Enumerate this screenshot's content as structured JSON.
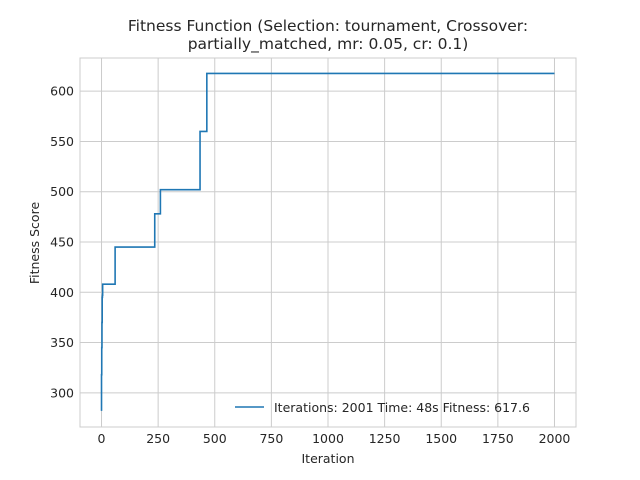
{
  "chart_data": {
    "type": "line",
    "title_line1": "Fitness Function (Selection: tournament, Crossover:",
    "title_line2": "partially_matched, mr: 0.05, cr: 0.1)",
    "xlabel": "Iteration",
    "ylabel": "Fitness Score",
    "xlim": [
      -95,
      2095
    ],
    "ylim": [
      266,
      633
    ],
    "xticks": [
      0,
      250,
      500,
      750,
      1000,
      1250,
      1500,
      1750,
      2000
    ],
    "yticks": [
      300,
      350,
      400,
      450,
      500,
      550,
      600
    ],
    "grid": true,
    "legend_position": "lower-right",
    "series": [
      {
        "name": "Iterations: 2001 Time: 48s Fitness: 617.6",
        "color": "#1f77b4",
        "x": [
          0,
          0,
          1,
          1,
          2,
          2,
          3,
          3,
          4,
          4,
          5,
          5,
          60,
          60,
          235,
          235,
          260,
          260,
          435,
          435,
          465,
          465,
          2000
        ],
        "y": [
          282,
          318,
          318,
          345,
          345,
          370,
          370,
          395,
          395,
          397,
          397,
          408,
          408,
          445,
          445,
          478,
          478,
          502,
          502,
          560,
          560,
          617.6,
          617.6
        ]
      }
    ]
  }
}
